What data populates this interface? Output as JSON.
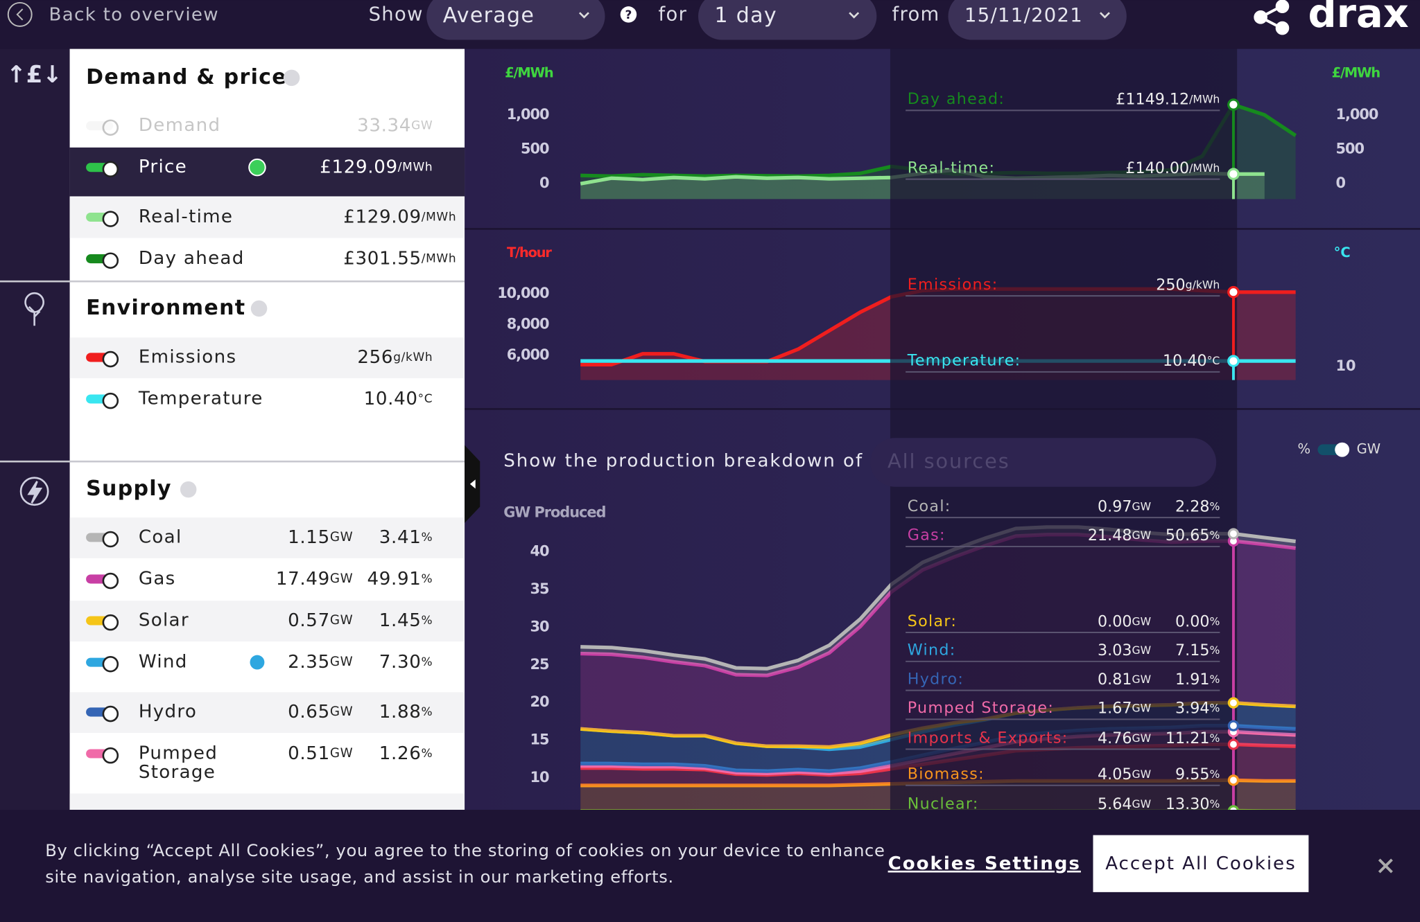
{
  "header": {
    "back": "Back to overview",
    "show_label": "Show",
    "show_value": "Average",
    "for_label": "for",
    "period": "1 day",
    "from_label": "from",
    "date": "15/11/2021",
    "logo": "drax"
  },
  "sidebar": [
    {
      "title": "Demand & price",
      "rows": [
        {
          "name": "Demand",
          "color": "#dddddd",
          "value": "33.34",
          "unit": "GW",
          "disabled": true
        },
        {
          "name": "Price",
          "color": "#2ec24a",
          "value": "£129.09",
          "unit": "/MWh",
          "selected": true
        },
        {
          "name": "Real-time",
          "color": "#8fe38f",
          "value": "£129.09",
          "unit": "/MWh"
        },
        {
          "name": "Day ahead",
          "color": "#168a1e",
          "value": "£301.55",
          "unit": "/MWh"
        }
      ]
    },
    {
      "title": "Environment",
      "rows": [
        {
          "name": "Emissions",
          "color": "#f01e1e",
          "value": "256",
          "unit": "g/kWh"
        },
        {
          "name": "Temperature",
          "color": "#39e6f0",
          "value": "10.40",
          "unit": "°C"
        }
      ]
    },
    {
      "title": "Supply",
      "units": [
        "GW",
        "%"
      ],
      "rows": [
        {
          "name": "Coal",
          "color": "#b5b5b5",
          "gw": "1.15",
          "pct": "3.41"
        },
        {
          "name": "Gas",
          "color": "#c83fa4",
          "gw": "17.49",
          "pct": "49.91"
        },
        {
          "name": "Solar",
          "color": "#f5c518",
          "gw": "0.57",
          "pct": "1.45"
        },
        {
          "name": "Wind",
          "color": "#2ea7e0",
          "gw": "2.35",
          "pct": "7.30"
        },
        {
          "name": "Hydro",
          "color": "#3565b5",
          "gw": "0.65",
          "pct": "1.88"
        },
        {
          "name": [
            "Pumped",
            "Storage"
          ],
          "color": "#f06aa8",
          "gw": "0.51",
          "pct": "1.26"
        }
      ]
    }
  ],
  "charts": [
    {
      "type": "line",
      "y_label": "£/MWh",
      "label_color": "#3fd63f",
      "categories": [
        null,
        null,
        null,
        null,
        null,
        null,
        null,
        null,
        null,
        null,
        null,
        null,
        null,
        null,
        null,
        null,
        null,
        null,
        null,
        null,
        null,
        null,
        null,
        null
      ],
      "ylim": [
        -224,
        1750
      ],
      "yticks": [
        {
          "value": 1000,
          "label": "1,000"
        },
        500,
        0
      ],
      "series": [
        {
          "color": "#168a1e",
          "values": [
            120,
            110,
            130,
            120,
            110,
            120,
            115,
            110,
            120,
            150,
            250,
            200,
            140,
            150,
            160,
            150,
            150,
            160,
            170,
            200,
            400,
            1149.12,
            1000,
            700
          ]
        },
        {
          "color": "#8fe38f",
          "values": [
            0,
            80,
            60,
            90,
            70,
            100,
            80,
            90,
            70,
            80,
            90,
            150,
            200,
            100,
            80,
            90,
            100,
            120,
            110,
            130,
            150,
            140,
            140,
            null
          ]
        }
      ],
      "tooltip": [
        {
          "label": "Day ahead:",
          "value": "£1149.12",
          "unit": "/MWh"
        },
        {
          "label": "Real-time:",
          "value": "£140.00",
          "unit": "/MWh"
        }
      ]
    },
    {
      "type": "line",
      "y_label": "T/hour",
      "label_color": "#ff2a2a",
      "y2_label": "°C",
      "y2_label_color": "#39e6f0",
      "categories": [
        null,
        null,
        null,
        null,
        null,
        null,
        null,
        null,
        null,
        null,
        null,
        null,
        null,
        null,
        null,
        null,
        null,
        null,
        null,
        null,
        null,
        null,
        null,
        null
      ],
      "ylim": [
        4400,
        13200
      ],
      "yticks": [
        {
          "value": 10000,
          "label": "10,000"
        },
        {
          "value": 8000,
          "label": "8,000"
        },
        {
          "value": 6000,
          "label": "6,000"
        }
      ],
      "y2lim": [
        9,
        19
      ],
      "y2ticks": [
        10
      ],
      "series": [
        {
          "color": "#f01e1e",
          "values": [
            5400,
            5400,
            6100,
            6100,
            5600,
            5600,
            5600,
            6400,
            7600,
            8800,
            9800,
            10200,
            10300,
            10300,
            10300,
            10300,
            10300,
            10300,
            10300,
            10300,
            10200,
            10100,
            10100,
            10100
          ]
        },
        {
          "color": "#39e6f0",
          "axis": "y2",
          "values": [
            10.4,
            10.4,
            10.4,
            10.4,
            10.4,
            10.4,
            10.4,
            10.4,
            10.4,
            10.4,
            10.4,
            10.4,
            10.4,
            10.4,
            10.4,
            10.4,
            10.4,
            10.4,
            10.4,
            10.4,
            10.4,
            10.4,
            10.4,
            10.4
          ]
        }
      ],
      "tooltip": [
        {
          "label": "Emissions:",
          "value": "250",
          "unit": "g/kWh"
        },
        {
          "label": "Temperature:",
          "value": "10.40",
          "unit": "°C"
        }
      ]
    },
    {
      "type": "stacked-area",
      "heading": "Show the production breakdown of",
      "selector": "All sources",
      "toggle": [
        "%",
        "GW"
      ],
      "y_label": "GW Produced",
      "categories": [
        null,
        null,
        null,
        null,
        null,
        null,
        null,
        null,
        null,
        null,
        null,
        null,
        null,
        null,
        null,
        null,
        null,
        null,
        null,
        null,
        null,
        null,
        null,
        null
      ],
      "ylim": [
        0,
        43.6
      ],
      "yticks": [
        40,
        35,
        30,
        25,
        20,
        15,
        10
      ],
      "series": [
        {
          "color": "#6abf3a",
          "values": [
            5.6,
            5.6,
            5.6,
            5.6,
            5.6,
            5.6,
            5.6,
            5.6,
            5.6,
            5.6,
            5.6,
            5.6,
            5.6,
            5.6,
            5.6,
            5.6,
            5.6,
            5.6,
            5.6,
            5.6,
            5.64,
            5.64,
            5.6,
            5.6
          ]
        },
        {
          "color": "#f7941d",
          "values": [
            3.4,
            3.4,
            3.4,
            3.4,
            3.4,
            3.4,
            3.4,
            3.4,
            3.4,
            3.5,
            3.6,
            3.7,
            3.8,
            3.9,
            4,
            4,
            4,
            4,
            4,
            4,
            4.05,
            4.05,
            4,
            4
          ]
        },
        {
          "color": "#e8334a",
          "values": [
            2.3,
            2.3,
            2.2,
            2.2,
            2.1,
            1.5,
            1.4,
            1.6,
            1.4,
            1.5,
            2,
            2.5,
            3,
            3.5,
            4,
            4.2,
            4.4,
            4.5,
            4.6,
            4.7,
            4.76,
            4.76,
            4.7,
            4.6
          ]
        },
        {
          "color": "#f06aa8",
          "values": [
            0.3,
            0.3,
            0.3,
            0.3,
            0.2,
            0.2,
            0.2,
            0.2,
            0.2,
            0.3,
            0.4,
            0.6,
            0.8,
            1,
            1.2,
            1.4,
            1.5,
            1.6,
            1.6,
            1.6,
            1.67,
            1.67,
            1.6,
            1.5
          ]
        },
        {
          "color": "#3565b5",
          "values": [
            0.3,
            0.3,
            0.3,
            0.3,
            0.3,
            0.3,
            0.3,
            0.3,
            0.3,
            0.4,
            0.5,
            0.6,
            0.7,
            0.7,
            0.8,
            0.8,
            0.8,
            0.8,
            0.8,
            0.8,
            0.81,
            0.81,
            0.8,
            0.8
          ]
        },
        {
          "color": "#2ea7e0",
          "values": [
            4.6,
            4.3,
            4.2,
            3.8,
            4,
            3.6,
            3.3,
            3,
            2.9,
            2.8,
            3,
            3.1,
            3.1,
            3,
            3,
            3,
            3,
            3,
            3,
            3,
            3.03,
            3.03,
            3,
            3
          ]
        },
        {
          "color": "#f5c518",
          "values": [
            0,
            0,
            0,
            0,
            0,
            0,
            0,
            0.1,
            0.3,
            0.5,
            0.6,
            0.5,
            0.3,
            0.1,
            0,
            0,
            0,
            0,
            0,
            0,
            0,
            0,
            0,
            0
          ]
        },
        {
          "color": "#c83fa4",
          "values": [
            10,
            10.2,
            10,
            9.8,
            9.3,
            9.1,
            9.4,
            10.5,
            12.5,
            15.5,
            19,
            21,
            22,
            23,
            23.5,
            23.3,
            23,
            22.5,
            22,
            21.6,
            21.5,
            21.48,
            21.3,
            21
          ]
        },
        {
          "color": "#b5b5b5",
          "values": [
            0.9,
            0.9,
            0.9,
            0.9,
            0.9,
            0.9,
            0.9,
            0.9,
            1,
            1,
            1,
            1,
            1,
            1,
            1,
            1,
            1,
            1,
            1,
            1,
            0.97,
            0.97,
            0.9,
            0.9
          ]
        }
      ],
      "units": [
        "GW",
        "%"
      ],
      "tooltip": [
        {
          "label": "Coal:",
          "gw": "0.97",
          "pct": "2.28"
        },
        {
          "label": "Gas:",
          "gw": "21.48",
          "pct": "50.65"
        },
        {
          "label": "Solar:",
          "gw": "0.00",
          "pct": "0.00"
        },
        {
          "label": "Wind:",
          "gw": "3.03",
          "pct": "7.15"
        },
        {
          "label": "Hydro:",
          "gw": "0.81",
          "pct": "1.91"
        },
        {
          "label": "Pumped Storage:",
          "gw": "1.67",
          "pct": "3.94"
        },
        {
          "label": "Imports & Exports:",
          "gw": "4.76",
          "pct": "11.21"
        },
        {
          "label": "Biomass:",
          "gw": "4.05",
          "pct": "9.55"
        },
        {
          "label": "Nuclear:",
          "gw": "5.64",
          "pct": "13.30"
        }
      ]
    }
  ],
  "cookies": {
    "text": [
      "By clicking “Accept All Cookies”, you agree to the storing of cookies on your device to enhance",
      "site navigation, analyse site usage, and assist in our marketing efforts."
    ],
    "settings": "Cookies Settings",
    "accept": "Accept All Cookies"
  }
}
